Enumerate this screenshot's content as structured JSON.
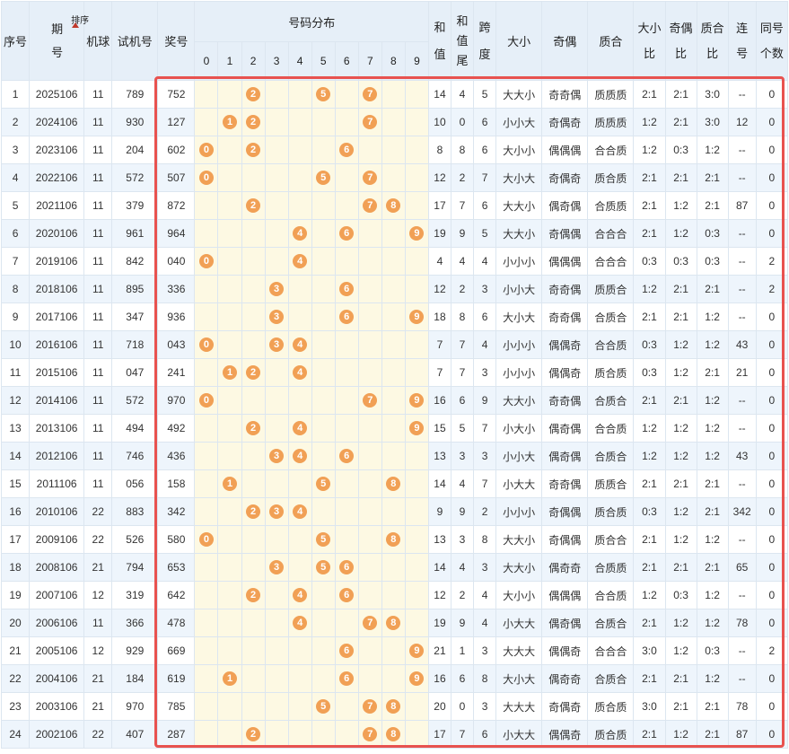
{
  "headers": {
    "seq": "序号",
    "period": "期号",
    "sort": "排序",
    "machine": "机球",
    "trial": "试机号",
    "prize": "奖号",
    "distribution": "号码分布",
    "digits": [
      "0",
      "1",
      "2",
      "3",
      "4",
      "5",
      "6",
      "7",
      "8",
      "9"
    ],
    "sum": "和值",
    "sum_tail": "和值尾",
    "span": "跨度",
    "big_small": "大小",
    "odd_even": "奇偶",
    "prime_composite": "质合",
    "big_small_ratio": "大小比",
    "odd_even_ratio": "奇偶比",
    "prime_ratio": "质合比",
    "consecutive": "连号",
    "same_count": "同号个数"
  },
  "highlight_color": "#e8524f",
  "ball_color": "#f1a055",
  "rows": [
    {
      "seq": "1",
      "period": "2025106",
      "machine": "11",
      "trial": "789",
      "prize": "752",
      "balls": [
        "2",
        "5",
        "7"
      ],
      "sum": "14",
      "tail": "4",
      "span": "5",
      "bs": "大大小",
      "oe": "奇奇偶",
      "pc": "质质质",
      "bsr": "2:1",
      "oer": "2:1",
      "pcr": "3:0",
      "lian": "--",
      "same": "0"
    },
    {
      "seq": "2",
      "period": "2024106",
      "machine": "11",
      "trial": "930",
      "prize": "127",
      "balls": [
        "1",
        "2",
        "7"
      ],
      "sum": "10",
      "tail": "0",
      "span": "6",
      "bs": "小小大",
      "oe": "奇偶奇",
      "pc": "质质质",
      "bsr": "1:2",
      "oer": "2:1",
      "pcr": "3:0",
      "lian": "12",
      "same": "0"
    },
    {
      "seq": "3",
      "period": "2023106",
      "machine": "11",
      "trial": "204",
      "prize": "602",
      "balls": [
        "0",
        "2",
        "6"
      ],
      "sum": "8",
      "tail": "8",
      "span": "6",
      "bs": "大小小",
      "oe": "偶偶偶",
      "pc": "合合质",
      "bsr": "1:2",
      "oer": "0:3",
      "pcr": "1:2",
      "lian": "--",
      "same": "0"
    },
    {
      "seq": "4",
      "period": "2022106",
      "machine": "11",
      "trial": "572",
      "prize": "507",
      "balls": [
        "0",
        "5",
        "7"
      ],
      "sum": "12",
      "tail": "2",
      "span": "7",
      "bs": "大小大",
      "oe": "奇偶奇",
      "pc": "质合质",
      "bsr": "2:1",
      "oer": "2:1",
      "pcr": "2:1",
      "lian": "--",
      "same": "0"
    },
    {
      "seq": "5",
      "period": "2021106",
      "machine": "11",
      "trial": "379",
      "prize": "872",
      "balls": [
        "2",
        "7",
        "8"
      ],
      "sum": "17",
      "tail": "7",
      "span": "6",
      "bs": "大大小",
      "oe": "偶奇偶",
      "pc": "合质质",
      "bsr": "2:1",
      "oer": "1:2",
      "pcr": "2:1",
      "lian": "87",
      "same": "0"
    },
    {
      "seq": "6",
      "period": "2020106",
      "machine": "11",
      "trial": "961",
      "prize": "964",
      "balls": [
        "4",
        "6",
        "9"
      ],
      "sum": "19",
      "tail": "9",
      "span": "5",
      "bs": "大大小",
      "oe": "奇偶偶",
      "pc": "合合合",
      "bsr": "2:1",
      "oer": "1:2",
      "pcr": "0:3",
      "lian": "--",
      "same": "0"
    },
    {
      "seq": "7",
      "period": "2019106",
      "machine": "11",
      "trial": "842",
      "prize": "040",
      "balls": [
        "0",
        "4"
      ],
      "sum": "4",
      "tail": "4",
      "span": "4",
      "bs": "小小小",
      "oe": "偶偶偶",
      "pc": "合合合",
      "bsr": "0:3",
      "oer": "0:3",
      "pcr": "0:3",
      "lian": "--",
      "same": "2"
    },
    {
      "seq": "8",
      "period": "2018106",
      "machine": "11",
      "trial": "895",
      "prize": "336",
      "balls": [
        "3",
        "6"
      ],
      "sum": "12",
      "tail": "2",
      "span": "3",
      "bs": "小小大",
      "oe": "奇奇偶",
      "pc": "质质合",
      "bsr": "1:2",
      "oer": "2:1",
      "pcr": "2:1",
      "lian": "--",
      "same": "2"
    },
    {
      "seq": "9",
      "period": "2017106",
      "machine": "11",
      "trial": "347",
      "prize": "936",
      "balls": [
        "3",
        "6",
        "9"
      ],
      "sum": "18",
      "tail": "8",
      "span": "6",
      "bs": "大小大",
      "oe": "奇奇偶",
      "pc": "合质合",
      "bsr": "2:1",
      "oer": "2:1",
      "pcr": "1:2",
      "lian": "--",
      "same": "0"
    },
    {
      "seq": "10",
      "period": "2016106",
      "machine": "11",
      "trial": "718",
      "prize": "043",
      "balls": [
        "0",
        "3",
        "4"
      ],
      "sum": "7",
      "tail": "7",
      "span": "4",
      "bs": "小小小",
      "oe": "偶偶奇",
      "pc": "合合质",
      "bsr": "0:3",
      "oer": "1:2",
      "pcr": "1:2",
      "lian": "43",
      "same": "0"
    },
    {
      "seq": "11",
      "period": "2015106",
      "machine": "11",
      "trial": "047",
      "prize": "241",
      "balls": [
        "1",
        "2",
        "4"
      ],
      "sum": "7",
      "tail": "7",
      "span": "3",
      "bs": "小小小",
      "oe": "偶偶奇",
      "pc": "质合质",
      "bsr": "0:3",
      "oer": "1:2",
      "pcr": "2:1",
      "lian": "21",
      "same": "0"
    },
    {
      "seq": "12",
      "period": "2014106",
      "machine": "11",
      "trial": "572",
      "prize": "970",
      "balls": [
        "0",
        "7",
        "9"
      ],
      "sum": "16",
      "tail": "6",
      "span": "9",
      "bs": "大大小",
      "oe": "奇奇偶",
      "pc": "合质合",
      "bsr": "2:1",
      "oer": "2:1",
      "pcr": "1:2",
      "lian": "--",
      "same": "0"
    },
    {
      "seq": "13",
      "period": "2013106",
      "machine": "11",
      "trial": "494",
      "prize": "492",
      "balls": [
        "2",
        "4",
        "9"
      ],
      "sum": "15",
      "tail": "5",
      "span": "7",
      "bs": "小大小",
      "oe": "偶奇偶",
      "pc": "合合质",
      "bsr": "1:2",
      "oer": "1:2",
      "pcr": "1:2",
      "lian": "--",
      "same": "0"
    },
    {
      "seq": "14",
      "period": "2012106",
      "machine": "11",
      "trial": "746",
      "prize": "436",
      "balls": [
        "3",
        "4",
        "6"
      ],
      "sum": "13",
      "tail": "3",
      "span": "3",
      "bs": "小小大",
      "oe": "偶奇偶",
      "pc": "合质合",
      "bsr": "1:2",
      "oer": "1:2",
      "pcr": "1:2",
      "lian": "43",
      "same": "0"
    },
    {
      "seq": "15",
      "period": "2011106",
      "machine": "11",
      "trial": "056",
      "prize": "158",
      "balls": [
        "1",
        "5",
        "8"
      ],
      "sum": "14",
      "tail": "4",
      "span": "7",
      "bs": "小大大",
      "oe": "奇奇偶",
      "pc": "质质合",
      "bsr": "2:1",
      "oer": "2:1",
      "pcr": "2:1",
      "lian": "--",
      "same": "0"
    },
    {
      "seq": "16",
      "period": "2010106",
      "machine": "22",
      "trial": "883",
      "prize": "342",
      "balls": [
        "2",
        "3",
        "4"
      ],
      "sum": "9",
      "tail": "9",
      "span": "2",
      "bs": "小小小",
      "oe": "奇偶偶",
      "pc": "质合质",
      "bsr": "0:3",
      "oer": "1:2",
      "pcr": "2:1",
      "lian": "342",
      "same": "0"
    },
    {
      "seq": "17",
      "period": "2009106",
      "machine": "22",
      "trial": "526",
      "prize": "580",
      "balls": [
        "0",
        "5",
        "8"
      ],
      "sum": "13",
      "tail": "3",
      "span": "8",
      "bs": "大大小",
      "oe": "奇偶偶",
      "pc": "质合合",
      "bsr": "2:1",
      "oer": "1:2",
      "pcr": "1:2",
      "lian": "--",
      "same": "0"
    },
    {
      "seq": "18",
      "period": "2008106",
      "machine": "21",
      "trial": "794",
      "prize": "653",
      "balls": [
        "3",
        "5",
        "6"
      ],
      "sum": "14",
      "tail": "4",
      "span": "3",
      "bs": "大大小",
      "oe": "偶奇奇",
      "pc": "合质质",
      "bsr": "2:1",
      "oer": "2:1",
      "pcr": "2:1",
      "lian": "65",
      "same": "0"
    },
    {
      "seq": "19",
      "period": "2007106",
      "machine": "12",
      "trial": "319",
      "prize": "642",
      "balls": [
        "2",
        "4",
        "6"
      ],
      "sum": "12",
      "tail": "2",
      "span": "4",
      "bs": "大小小",
      "oe": "偶偶偶",
      "pc": "合合质",
      "bsr": "1:2",
      "oer": "0:3",
      "pcr": "1:2",
      "lian": "--",
      "same": "0"
    },
    {
      "seq": "20",
      "period": "2006106",
      "machine": "11",
      "trial": "366",
      "prize": "478",
      "balls": [
        "4",
        "7",
        "8"
      ],
      "sum": "19",
      "tail": "9",
      "span": "4",
      "bs": "小大大",
      "oe": "偶奇偶",
      "pc": "合质合",
      "bsr": "2:1",
      "oer": "1:2",
      "pcr": "1:2",
      "lian": "78",
      "same": "0"
    },
    {
      "seq": "21",
      "period": "2005106",
      "machine": "12",
      "trial": "929",
      "prize": "669",
      "balls": [
        "6",
        "9"
      ],
      "sum": "21",
      "tail": "1",
      "span": "3",
      "bs": "大大大",
      "oe": "偶偶奇",
      "pc": "合合合",
      "bsr": "3:0",
      "oer": "1:2",
      "pcr": "0:3",
      "lian": "--",
      "same": "2"
    },
    {
      "seq": "22",
      "period": "2004106",
      "machine": "21",
      "trial": "184",
      "prize": "619",
      "balls": [
        "1",
        "6",
        "9"
      ],
      "sum": "16",
      "tail": "6",
      "span": "8",
      "bs": "大小大",
      "oe": "偶奇奇",
      "pc": "合质合",
      "bsr": "2:1",
      "oer": "2:1",
      "pcr": "1:2",
      "lian": "--",
      "same": "0"
    },
    {
      "seq": "23",
      "period": "2003106",
      "machine": "21",
      "trial": "970",
      "prize": "785",
      "balls": [
        "5",
        "7",
        "8"
      ],
      "sum": "20",
      "tail": "0",
      "span": "3",
      "bs": "大大大",
      "oe": "奇偶奇",
      "pc": "质合质",
      "bsr": "3:0",
      "oer": "2:1",
      "pcr": "2:1",
      "lian": "78",
      "same": "0"
    },
    {
      "seq": "24",
      "period": "2002106",
      "machine": "22",
      "trial": "407",
      "prize": "287",
      "balls": [
        "2",
        "7",
        "8"
      ],
      "sum": "17",
      "tail": "7",
      "span": "6",
      "bs": "小大大",
      "oe": "偶偶奇",
      "pc": "质合质",
      "bsr": "2:1",
      "oer": "1:2",
      "pcr": "2:1",
      "lian": "87",
      "same": "0"
    }
  ]
}
